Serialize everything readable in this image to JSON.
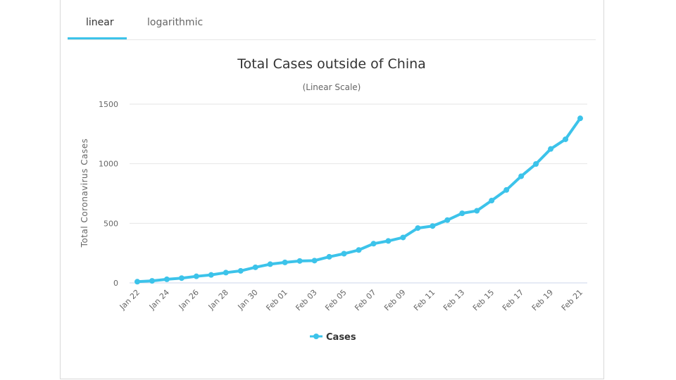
{
  "tabs": [
    {
      "label": "linear",
      "active": true
    },
    {
      "label": "logarithmic",
      "active": false
    }
  ],
  "colors": {
    "series": "#3cc3ea",
    "grid": "#e6e6e6",
    "tab_active": "#3cc3ea"
  },
  "chart_data": {
    "type": "line",
    "title": "Total Cases outside of China",
    "subtitle": "(Linear Scale)",
    "ylabel": "Total Coronavirus Cases",
    "xlabel": "",
    "ylim": [
      0,
      1500
    ],
    "yticks": [
      "0",
      "500",
      "1000",
      "1500"
    ],
    "ytick_values": [
      0,
      500,
      1000,
      1500
    ],
    "grid": true,
    "legend": "bottom-center",
    "x": [
      "Jan 22",
      "Jan 23",
      "Jan 24",
      "Jan 25",
      "Jan 26",
      "Jan 27",
      "Jan 28",
      "Jan 29",
      "Jan 30",
      "Jan 31",
      "Feb 01",
      "Feb 02",
      "Feb 03",
      "Feb 04",
      "Feb 05",
      "Feb 06",
      "Feb 07",
      "Feb 08",
      "Feb 09",
      "Feb 10",
      "Feb 11",
      "Feb 12",
      "Feb 13",
      "Feb 14",
      "Feb 15",
      "Feb 16",
      "Feb 17",
      "Feb 18",
      "Feb 19",
      "Feb 20",
      "Feb 21"
    ],
    "xtick_labels": [
      "Jan 22",
      "Jan 24",
      "Jan 26",
      "Jan 28",
      "Jan 30",
      "Feb 01",
      "Feb 03",
      "Feb 05",
      "Feb 07",
      "Feb 09",
      "Feb 11",
      "Feb 13",
      "Feb 15",
      "Feb 17",
      "Feb 19",
      "Feb 21"
    ],
    "series": [
      {
        "name": "Cases",
        "values": [
          10,
          17,
          30,
          40,
          55,
          67,
          86,
          101,
          131,
          157,
          172,
          184,
          187,
          219,
          245,
          276,
          329,
          352,
          381,
          460,
          477,
          527,
          584,
          605,
          691,
          780,
          895,
          998,
          1124,
          1205,
          1381
        ]
      }
    ]
  }
}
